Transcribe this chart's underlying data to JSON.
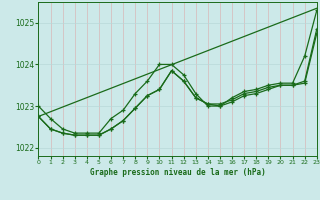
{
  "title": "Graphe pression niveau de la mer (hPa)",
  "bg_color": "#cce9e9",
  "grid_color": "#aacccc",
  "line_color": "#1a6b1a",
  "xlim": [
    0,
    23
  ],
  "ylim": [
    1021.8,
    1025.5
  ],
  "yticks": [
    1022,
    1023,
    1024,
    1025
  ],
  "xtick_labels": [
    "0",
    "1",
    "2",
    "3",
    "4",
    "5",
    "6",
    "7",
    "8",
    "9",
    "10",
    "11",
    "12",
    "13",
    "14",
    "15",
    "16",
    "17",
    "18",
    "19",
    "20",
    "21",
    "22",
    "23"
  ],
  "straight_line": [
    [
      0,
      23
    ],
    [
      1022.75,
      1025.35
    ]
  ],
  "series1": [
    1023.0,
    1022.7,
    1022.45,
    1022.35,
    1022.35,
    1022.35,
    1022.7,
    1022.9,
    1023.3,
    1023.6,
    1024.0,
    1024.0,
    1023.75,
    1023.3,
    1023.0,
    1023.0,
    1023.2,
    1023.35,
    1023.4,
    1023.5,
    1023.55,
    1023.55,
    1024.2,
    1025.3
  ],
  "series2": [
    1022.75,
    1022.45,
    1022.35,
    1022.3,
    1022.3,
    1022.3,
    1022.45,
    1022.65,
    1022.95,
    1023.25,
    1023.4,
    1023.85,
    1023.6,
    1023.2,
    1023.05,
    1023.05,
    1023.15,
    1023.3,
    1023.35,
    1023.45,
    1023.5,
    1023.5,
    1023.6,
    1024.85
  ],
  "series3": [
    1022.75,
    1022.45,
    1022.35,
    1022.3,
    1022.3,
    1022.3,
    1022.45,
    1022.65,
    1022.95,
    1023.25,
    1023.4,
    1023.85,
    1023.6,
    1023.2,
    1023.05,
    1023.0,
    1023.1,
    1023.25,
    1023.3,
    1023.4,
    1023.5,
    1023.5,
    1023.55,
    1024.75
  ]
}
